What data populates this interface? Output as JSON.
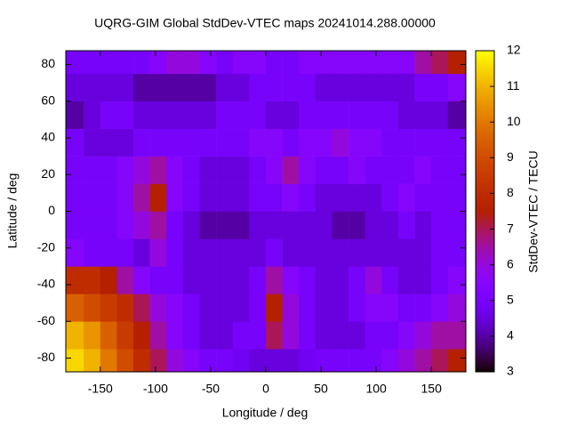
{
  "chart_data": {
    "type": "heatmap",
    "title": "UQRG-GIM Global StdDev-VTEC maps 20241014.288.00000",
    "x_label": "Longitude / deg",
    "y_label": "Latitude / deg",
    "colorbar_label": "StdDev-VTEC / TECU",
    "colormap": "gnuplot",
    "xbins": [
      -181.25,
      -165,
      -150,
      -135,
      -120,
      -105,
      -90,
      -75,
      -60,
      -45,
      -30,
      -15,
      0,
      15,
      30,
      45,
      60,
      75,
      90,
      105,
      120,
      135,
      150,
      165,
      181.25
    ],
    "ybins": [
      -87.5,
      -75,
      -60,
      -45,
      -30,
      -15,
      0,
      15,
      30,
      45,
      60,
      75,
      87.5
    ],
    "z": [
      [
        11.5,
        11,
        10,
        9,
        8,
        7,
        6,
        5.5,
        5,
        5,
        4.8,
        4.5,
        4.5,
        4.5,
        4.8,
        5,
        5,
        5,
        5,
        5.5,
        6,
        6.5,
        7,
        7.5
      ],
      [
        11,
        10.5,
        9.5,
        8.5,
        7.5,
        6.5,
        5.5,
        5,
        4.5,
        4.5,
        5,
        5,
        7,
        6,
        5,
        4.5,
        4.5,
        4.5,
        5,
        5,
        5.5,
        6,
        6.5,
        6.5
      ],
      [
        9.5,
        9,
        8.5,
        8,
        7,
        6,
        5.5,
        5,
        4.5,
        4.5,
        4.5,
        5,
        7.5,
        6,
        5,
        4.5,
        4.5,
        5,
        5.5,
        5.5,
        5,
        5,
        5.5,
        6
      ],
      [
        8,
        8,
        7.5,
        6.5,
        5.5,
        5,
        5,
        4.5,
        4.5,
        4.5,
        4.5,
        5,
        6.5,
        5.5,
        5,
        4.5,
        4.5,
        5,
        6,
        5,
        4.5,
        4.5,
        5,
        5.5
      ],
      [
        5.5,
        5,
        5,
        5,
        4.5,
        6,
        5,
        4.5,
        4.5,
        4.5,
        4.5,
        4.5,
        5,
        4.5,
        4.5,
        4.5,
        4.5,
        4.5,
        4.5,
        4.5,
        4.5,
        4.5,
        5,
        5
      ],
      [
        5,
        5,
        5,
        5.5,
        6,
        6.5,
        5,
        4.5,
        4,
        4,
        4,
        4.5,
        4.5,
        4.5,
        4.5,
        4.5,
        4,
        4,
        4.5,
        4.5,
        5,
        4.5,
        5,
        5
      ],
      [
        5,
        5,
        5,
        5.5,
        6.5,
        7.5,
        5.5,
        5,
        4.5,
        4.5,
        4.5,
        5,
        5,
        5.5,
        5,
        4.5,
        4.5,
        4.5,
        4.5,
        5,
        5.5,
        5,
        5,
        5
      ],
      [
        5,
        5,
        5,
        5.5,
        6,
        6.5,
        5.5,
        5,
        4.5,
        4.5,
        4.5,
        5,
        5.5,
        6.5,
        5.5,
        5,
        5,
        5.5,
        5,
        5,
        5,
        5.5,
        5,
        5
      ],
      [
        5,
        4.5,
        4.5,
        4.5,
        5,
        5,
        5,
        5,
        5,
        5,
        5,
        5.5,
        5.5,
        5,
        5.5,
        5.5,
        6,
        5.5,
        5.5,
        5,
        5,
        5,
        5,
        5
      ],
      [
        4,
        4.5,
        5,
        5,
        4.5,
        4.5,
        4.5,
        4.5,
        4.5,
        5,
        5,
        5,
        4.5,
        4.5,
        5,
        5,
        5,
        5,
        5,
        5,
        4.5,
        4.5,
        4.5,
        4
      ],
      [
        4.5,
        4.5,
        4.5,
        4.5,
        4,
        4,
        4,
        4,
        4,
        4.5,
        4.5,
        5,
        5,
        5,
        5,
        4.5,
        4.5,
        4.5,
        4.5,
        4.5,
        4.5,
        5,
        5,
        5.5
      ],
      [
        5,
        5,
        5,
        5,
        5,
        5.5,
        6,
        6,
        5.5,
        5,
        5.5,
        5.5,
        5,
        5,
        5.5,
        5.5,
        5.5,
        5.5,
        5.5,
        5.5,
        5.5,
        6.5,
        7,
        7.5
      ]
    ],
    "xlim": [
      -181.25,
      181.25
    ],
    "ylim": [
      -87.5,
      87.5
    ],
    "zlim": [
      3,
      12
    ],
    "xticks": [
      -150,
      -100,
      -50,
      0,
      50,
      100,
      150
    ],
    "yticks": [
      -80,
      -60,
      -40,
      -20,
      0,
      20,
      40,
      60,
      80
    ],
    "zticks": [
      3,
      4,
      5,
      6,
      7,
      8,
      9,
      10,
      11,
      12
    ]
  }
}
